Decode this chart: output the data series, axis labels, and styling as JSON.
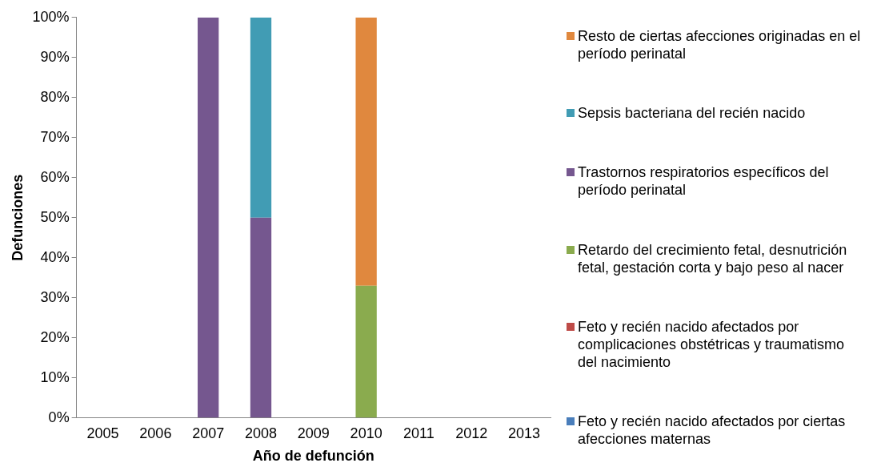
{
  "chart_data": {
    "type": "bar",
    "xlabel": "Año de defunción",
    "ylabel": "Defunciones",
    "categories": [
      "2005",
      "2006",
      "2007",
      "2008",
      "2009",
      "2010",
      "2011",
      "2012",
      "2013"
    ],
    "stacked": true,
    "legend": "right",
    "grid": false,
    "ylim": [
      0,
      100
    ],
    "yticks": [
      {
        "value": 0,
        "label": "0%"
      },
      {
        "value": 10,
        "label": "10%"
      },
      {
        "value": 20,
        "label": "20%"
      },
      {
        "value": 30,
        "label": "30%"
      },
      {
        "value": 40,
        "label": "40%"
      },
      {
        "value": 50,
        "label": "50%"
      },
      {
        "value": 60,
        "label": "60%"
      },
      {
        "value": 70,
        "label": "70%"
      },
      {
        "value": 80,
        "label": "80%"
      },
      {
        "value": 90,
        "label": "90%"
      },
      {
        "value": 100,
        "label": "100%"
      }
    ],
    "series": [
      {
        "name": "Feto y recién nacido afectados por ciertas afecciones maternas",
        "color": "#4a7ebb",
        "values": [
          null,
          null,
          null,
          null,
          null,
          null,
          null,
          null,
          null
        ]
      },
      {
        "name": "Feto y recién nacido afectados por complicaciones obstétricas y traumatismo del nacimiento",
        "color": "#be4b48",
        "values": [
          null,
          null,
          null,
          null,
          null,
          null,
          null,
          null,
          null
        ]
      },
      {
        "name": "Retardo del crecimiento fetal, desnutrición fetal, gestación corta y bajo peso al nacer",
        "color": "#8aab4e",
        "values": [
          null,
          null,
          null,
          null,
          null,
          33,
          null,
          null,
          null
        ]
      },
      {
        "name": "Trastornos respiratorios específicos del período perinatal",
        "color": "#75578f",
        "values": [
          null,
          null,
          100,
          50,
          null,
          null,
          null,
          null,
          null
        ]
      },
      {
        "name": "Sepsis bacteriana del recién nacido",
        "color": "#419cb4",
        "values": [
          null,
          null,
          null,
          50,
          null,
          null,
          null,
          null,
          null
        ]
      },
      {
        "name": "Resto de ciertas afecciones originadas en el período perinatal",
        "color": "#e0883e",
        "values": [
          null,
          null,
          null,
          null,
          null,
          67,
          null,
          null,
          null
        ]
      }
    ]
  }
}
